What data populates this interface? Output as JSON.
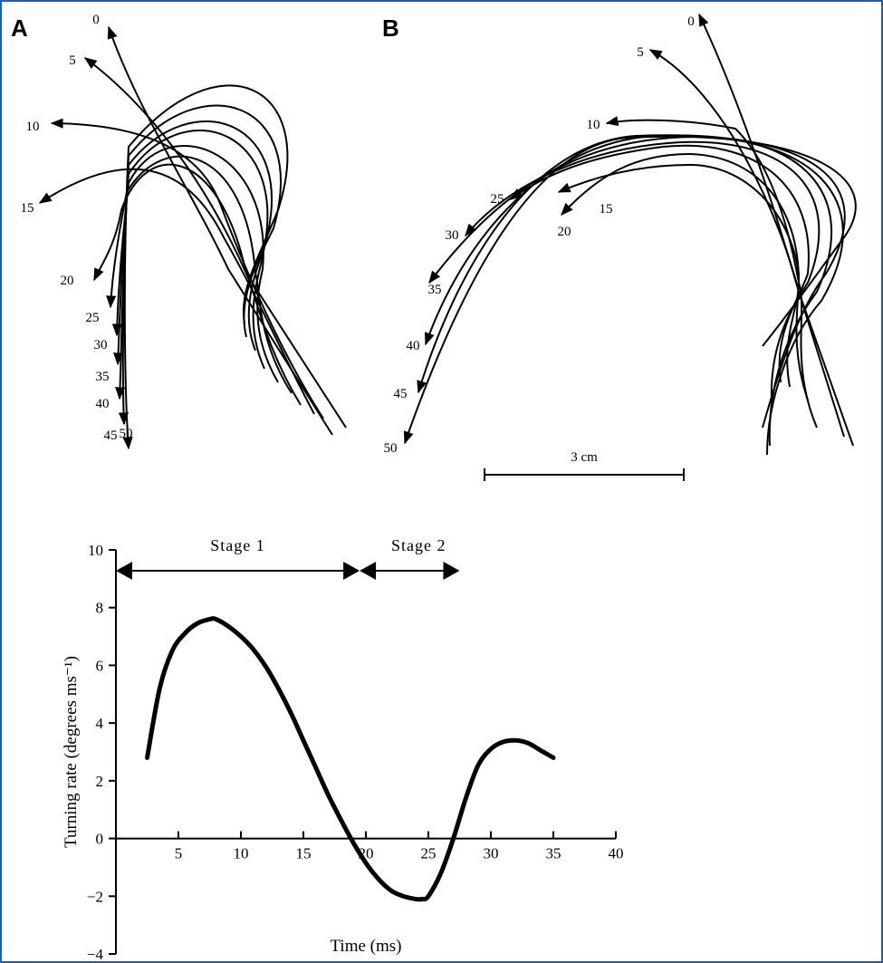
{
  "panels": {
    "a": {
      "letter": "A",
      "time_labels": [
        "0",
        "5",
        "10",
        "15",
        "20",
        "25",
        "30",
        "35",
        "40",
        "45",
        "50"
      ]
    },
    "b": {
      "letter": "B",
      "time_labels": [
        "0",
        "5",
        "10",
        "15",
        "20",
        "25",
        "30",
        "35",
        "40",
        "45",
        "50"
      ],
      "scale_bar_label": "3 cm"
    }
  },
  "stages": {
    "stage1_label": "Stage 1",
    "stage2_label": "Stage 2",
    "stage1_ms": [
      0,
      19.5
    ],
    "stage2_ms": [
      19.5,
      27.5
    ]
  },
  "chart_data": {
    "type": "line",
    "xlabel": "Time (ms)",
    "ylabel": "Turning rate (degrees ms⁻¹)",
    "xlim": [
      0,
      40
    ],
    "ylim": [
      -4,
      10
    ],
    "xticks": [
      5,
      10,
      15,
      20,
      25,
      30,
      35,
      40
    ],
    "yticks": [
      -4,
      -2,
      0,
      2,
      4,
      6,
      8,
      10
    ],
    "ytick_labels": [
      "−4",
      "−2",
      "0",
      "2",
      "4",
      "6",
      "8",
      "10"
    ],
    "series": [
      {
        "x": [
          2.5,
          3.5,
          4.5,
          5.5,
          6.5,
          7.5,
          8,
          9,
          10,
          11,
          12,
          13,
          14,
          15,
          16,
          17,
          18,
          19,
          20,
          21,
          22,
          23,
          24,
          24.5,
          25,
          26,
          27,
          28,
          29,
          30,
          31,
          32,
          33,
          34,
          35
        ],
        "y": [
          2.8,
          5.2,
          6.5,
          7.1,
          7.45,
          7.6,
          7.6,
          7.35,
          7.0,
          6.55,
          5.95,
          5.2,
          4.35,
          3.4,
          2.45,
          1.5,
          0.65,
          -0.15,
          -0.85,
          -1.4,
          -1.8,
          -2.0,
          -2.1,
          -2.1,
          -2.0,
          -1.2,
          0.0,
          1.4,
          2.55,
          3.1,
          3.35,
          3.4,
          3.3,
          3.05,
          2.8
        ]
      }
    ]
  }
}
